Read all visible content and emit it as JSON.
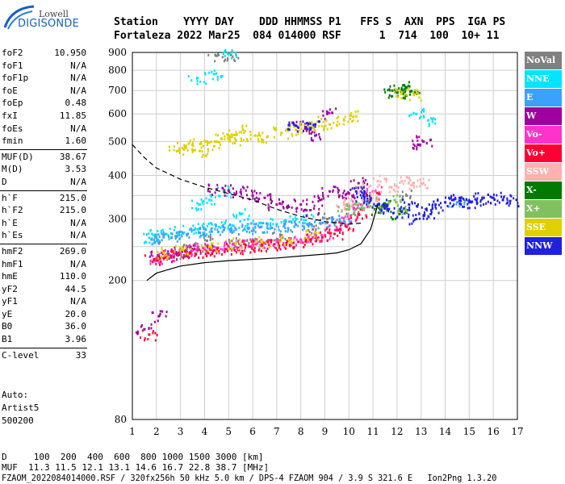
{
  "logo": {
    "brand": "Lowell",
    "product": "DIGISONDE"
  },
  "header": {
    "line1": "Station    YYYY DAY    DDD HHMMSS P1   FFS S  AXN  PPS  IGA PS",
    "line2": "Fortaleza 2022 Mar25  084 014000 RSF      1  714  100  10+ 11"
  },
  "params": {
    "group1": [
      {
        "key": "foF2",
        "value": "10.950"
      },
      {
        "key": "foF1",
        "value": "N/A"
      },
      {
        "key": "foF1p",
        "value": "N/A"
      },
      {
        "key": "foE",
        "value": "N/A"
      },
      {
        "key": "foEp",
        "value": "0.48"
      },
      {
        "key": "fxI",
        "value": "11.85"
      },
      {
        "key": "foEs",
        "value": "N/A"
      },
      {
        "key": "fmin",
        "value": "1.60"
      }
    ],
    "group2": [
      {
        "key": "MUF(D)",
        "value": "38.67"
      },
      {
        "key": "M(D)",
        "value": "3.53"
      },
      {
        "key": "D",
        "value": "N/A"
      }
    ],
    "group3": [
      {
        "key": "h`F",
        "value": "215.0"
      },
      {
        "key": "h`F2",
        "value": "215.0"
      },
      {
        "key": "h`E",
        "value": "N/A"
      },
      {
        "key": "h`Es",
        "value": "N/A"
      }
    ],
    "group4": [
      {
        "key": "hmF2",
        "value": "269.0"
      },
      {
        "key": "hmF1",
        "value": "N/A"
      },
      {
        "key": "hmE",
        "value": "110.0"
      },
      {
        "key": "yF2",
        "value": "44.5"
      },
      {
        "key": "yF1",
        "value": "N/A"
      },
      {
        "key": "yE",
        "value": "20.0"
      },
      {
        "key": "B0",
        "value": "36.0"
      },
      {
        "key": "B1",
        "value": "3.96"
      }
    ],
    "group5": [
      {
        "key": "C-level",
        "value": "33"
      }
    ]
  },
  "auto": {
    "line1": "Auto:",
    "line2": "Artist5",
    "line3": "500200"
  },
  "footer": {
    "d_line": "D     100  200  400  600  800 1000 1500 3000 [km]",
    "muf_line": "MUF  11.3 11.5 12.1 13.1 14.6 16.7 22.8 38.7 [MHz]",
    "info_line": "FZAOM_2022084014000.RSF / 320fx256h 50 kHz 5.0 km / DPS-4 FZAOM 904 / 3.9 S 321.6 E   Ion2Png 1.3.20"
  },
  "legend": [
    {
      "label": "NoVal",
      "color": "#808080"
    },
    {
      "label": "NNE",
      "color": "#00e5ff"
    },
    {
      "label": "E",
      "color": "#3ca0ff"
    },
    {
      "label": "W",
      "color": "#a000a0"
    },
    {
      "label": "Vo-",
      "color": "#ff33cc"
    },
    {
      "label": "Vo+",
      "color": "#ff0033"
    },
    {
      "label": "SSW",
      "color": "#ffb0b0"
    },
    {
      "label": "X-",
      "color": "#007a00"
    },
    {
      "label": "X+",
      "color": "#80c060"
    },
    {
      "label": "SSE",
      "color": "#e0d000"
    },
    {
      "label": "NNW",
      "color": "#2020e0"
    }
  ],
  "chart_data": {
    "type": "scatter",
    "title": "",
    "xlabel": "",
    "ylabel": "",
    "xlim": [
      1,
      17
    ],
    "ylim": [
      80,
      900
    ],
    "y_scale": "log",
    "x_ticks": [
      1,
      2,
      3,
      4,
      5,
      6,
      7,
      8,
      9,
      10,
      11,
      12,
      13,
      14,
      15,
      16,
      17
    ],
    "y_ticks": [
      80,
      200,
      300,
      400,
      500,
      600,
      700,
      800,
      900
    ],
    "grid": true,
    "legend_position": "right",
    "series": [
      {
        "name": "NoVal",
        "points": [
          [
            2.9,
            240
          ],
          [
            3.4,
            250
          ],
          [
            4.1,
            260
          ],
          [
            5.2,
            255
          ],
          [
            6.0,
            262
          ],
          [
            7.2,
            270
          ],
          [
            8.5,
            280
          ],
          [
            9.1,
            300
          ],
          [
            10.2,
            320
          ],
          [
            12.4,
            350
          ],
          [
            4.5,
            880
          ],
          [
            5.1,
            885
          ]
        ]
      },
      {
        "name": "NNE",
        "points": [
          [
            1.7,
            265
          ],
          [
            2.0,
            270
          ],
          [
            2.4,
            272
          ],
          [
            2.9,
            275
          ],
          [
            3.4,
            280
          ],
          [
            4.0,
            282
          ],
          [
            4.6,
            285
          ],
          [
            5.2,
            287
          ],
          [
            5.8,
            290
          ],
          [
            6.4,
            292
          ],
          [
            7.0,
            290
          ],
          [
            7.6,
            295
          ],
          [
            8.2,
            298
          ],
          [
            3.8,
            330
          ],
          [
            4.2,
            340
          ],
          [
            4.8,
            360
          ],
          [
            5.0,
            890
          ],
          [
            3.7,
            760
          ],
          [
            4.4,
            780
          ],
          [
            5.5,
            310
          ],
          [
            12.8,
            600
          ],
          [
            13.3,
            575
          ]
        ]
      },
      {
        "name": "E",
        "points": [
          [
            1.8,
            262
          ],
          [
            2.3,
            266
          ],
          [
            2.8,
            268
          ],
          [
            3.3,
            272
          ],
          [
            3.8,
            274
          ],
          [
            4.3,
            276
          ],
          [
            4.8,
            279
          ],
          [
            5.3,
            280
          ],
          [
            5.8,
            282
          ],
          [
            6.3,
            284
          ],
          [
            6.8,
            283
          ],
          [
            7.3,
            286
          ],
          [
            7.8,
            289
          ],
          [
            8.3,
            290
          ],
          [
            8.8,
            292
          ],
          [
            9.3,
            294
          ],
          [
            9.8,
            296
          ],
          [
            14.5,
            335
          ]
        ]
      },
      {
        "name": "W",
        "points": [
          [
            2.1,
            235
          ],
          [
            2.5,
            238
          ],
          [
            3.0,
            242
          ],
          [
            3.5,
            245
          ],
          [
            4.0,
            246
          ],
          [
            4.5,
            365
          ],
          [
            5.0,
            362
          ],
          [
            5.5,
            358
          ],
          [
            6.0,
            350
          ],
          [
            6.5,
            345
          ],
          [
            7.0,
            330
          ],
          [
            7.5,
            325
          ],
          [
            8.0,
            330
          ],
          [
            8.4,
            318
          ],
          [
            8.8,
            340
          ],
          [
            9.2,
            360
          ],
          [
            9.6,
            350
          ],
          [
            10.0,
            355
          ],
          [
            10.4,
            380
          ],
          [
            8.0,
            560
          ],
          [
            8.2,
            545
          ],
          [
            8.6,
            520
          ],
          [
            9.1,
            600
          ],
          [
            12.9,
            490
          ],
          [
            13.1,
            500
          ],
          [
            1.5,
            145
          ],
          [
            2.1,
            158
          ]
        ]
      },
      {
        "name": "Vo-",
        "points": [
          [
            2.0,
            232
          ],
          [
            2.5,
            236
          ],
          [
            3.0,
            240
          ],
          [
            3.5,
            244
          ],
          [
            4.0,
            246
          ],
          [
            4.5,
            248
          ],
          [
            5.0,
            250
          ],
          [
            5.5,
            252
          ],
          [
            6.0,
            254
          ],
          [
            6.5,
            256
          ],
          [
            7.0,
            258
          ],
          [
            7.5,
            260
          ],
          [
            8.0,
            262
          ],
          [
            8.5,
            266
          ],
          [
            9.0,
            270
          ],
          [
            9.5,
            280
          ],
          [
            10.0,
            300
          ],
          [
            10.5,
            330
          ],
          [
            11.0,
            360
          ]
        ]
      },
      {
        "name": "Vo+",
        "points": [
          [
            1.9,
            230
          ],
          [
            2.4,
            233
          ],
          [
            2.9,
            236
          ],
          [
            3.4,
            239
          ],
          [
            3.9,
            242
          ],
          [
            4.4,
            244
          ],
          [
            4.9,
            246
          ],
          [
            5.4,
            248
          ],
          [
            5.9,
            250
          ],
          [
            6.4,
            252
          ],
          [
            6.9,
            254
          ],
          [
            7.4,
            256
          ],
          [
            7.9,
            258
          ],
          [
            8.4,
            262
          ],
          [
            8.9,
            266
          ],
          [
            9.4,
            272
          ],
          [
            9.9,
            285
          ],
          [
            10.4,
            310
          ],
          [
            10.9,
            345
          ],
          [
            1.7,
            140
          ]
        ]
      },
      {
        "name": "SSW",
        "points": [
          [
            9.8,
            330
          ],
          [
            10.1,
            340
          ],
          [
            10.6,
            370
          ],
          [
            11.2,
            385
          ],
          [
            11.7,
            370
          ],
          [
            12.2,
            385
          ],
          [
            12.6,
            375
          ],
          [
            13.0,
            380
          ],
          [
            10.9,
            348
          ]
        ]
      },
      {
        "name": "X-",
        "points": [
          [
            11.8,
            700
          ],
          [
            12.0,
            690
          ],
          [
            12.2,
            705
          ],
          [
            12.4,
            715
          ],
          [
            12.6,
            698
          ],
          [
            11.1,
            320
          ],
          [
            11.6,
            330
          ],
          [
            12.1,
            310
          ]
        ]
      },
      {
        "name": "X+",
        "points": [
          [
            9.9,
            320
          ],
          [
            10.3,
            330
          ],
          [
            10.8,
            335
          ],
          [
            11.3,
            325
          ],
          [
            11.9,
            340
          ],
          [
            12.3,
            320
          ]
        ]
      },
      {
        "name": "SSE",
        "points": [
          [
            2.9,
            470
          ],
          [
            3.2,
            480
          ],
          [
            3.5,
            490
          ],
          [
            3.8,
            470
          ],
          [
            4.1,
            500
          ],
          [
            4.4,
            485
          ],
          [
            4.7,
            510
          ],
          [
            5.0,
            520
          ],
          [
            5.3,
            505
          ],
          [
            5.6,
            540
          ],
          [
            6.1,
            520
          ],
          [
            6.6,
            515
          ],
          [
            7.2,
            530
          ],
          [
            7.8,
            540
          ],
          [
            8.3,
            550
          ],
          [
            8.7,
            570
          ],
          [
            9.2,
            560
          ],
          [
            9.8,
            575
          ],
          [
            10.3,
            590
          ],
          [
            2.3,
            240
          ],
          [
            3.1,
            245
          ],
          [
            4.2,
            250
          ],
          [
            5.3,
            255
          ],
          [
            6.4,
            258
          ],
          [
            7.5,
            262
          ],
          [
            8.4,
            270
          ],
          [
            12.7,
            680
          ],
          [
            12.2,
            690
          ]
        ]
      },
      {
        "name": "NNW",
        "points": [
          [
            10.3,
            360
          ],
          [
            10.6,
            350
          ],
          [
            10.9,
            340
          ],
          [
            11.2,
            330
          ],
          [
            11.6,
            320
          ],
          [
            12.2,
            315
          ],
          [
            12.5,
            330
          ],
          [
            12.8,
            300
          ],
          [
            13.2,
            320
          ],
          [
            13.6,
            330
          ],
          [
            14.0,
            335
          ],
          [
            14.3,
            340
          ],
          [
            14.6,
            345
          ],
          [
            15.0,
            335
          ],
          [
            15.3,
            340
          ],
          [
            15.6,
            345
          ],
          [
            16.0,
            345
          ],
          [
            16.4,
            340
          ],
          [
            16.7,
            338
          ],
          [
            13.4,
            310
          ],
          [
            8.2,
            550
          ],
          [
            8.6,
            560
          ],
          [
            7.8,
            555
          ]
        ]
      }
    ],
    "curves": [
      {
        "name": "profile",
        "style": "solid",
        "points": [
          [
            1.6,
            200
          ],
          [
            2.0,
            210
          ],
          [
            3.0,
            220
          ],
          [
            4.0,
            225
          ],
          [
            5.0,
            228
          ],
          [
            6.0,
            230
          ],
          [
            7.0,
            232
          ],
          [
            8.0,
            235
          ],
          [
            9.0,
            238
          ],
          [
            9.5,
            240
          ],
          [
            10.0,
            245
          ],
          [
            10.5,
            255
          ],
          [
            10.9,
            280
          ],
          [
            11.2,
            330
          ]
        ]
      },
      {
        "name": "model",
        "style": "dashed",
        "points": [
          [
            1.0,
            490
          ],
          [
            1.5,
            450
          ],
          [
            2.0,
            420
          ],
          [
            3.0,
            390
          ],
          [
            4.0,
            370
          ],
          [
            5.0,
            355
          ],
          [
            6.0,
            340
          ],
          [
            7.0,
            320
          ],
          [
            8.0,
            305
          ],
          [
            9.0,
            295
          ],
          [
            10.0,
            290
          ],
          [
            10.5,
            292
          ]
        ]
      }
    ]
  }
}
